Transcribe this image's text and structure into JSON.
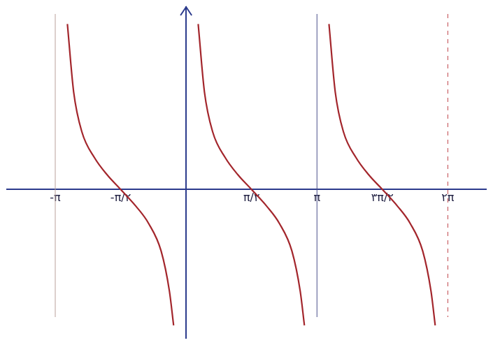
{
  "chart_data": {
    "type": "line",
    "x": [
      -2.85,
      -2.7,
      -2.5,
      -2.2,
      -1.9,
      -1.5708,
      -1.2,
      -0.9,
      -0.6,
      -0.4,
      -0.3,
      0,
      0.29,
      0.44,
      0.64,
      0.94,
      1.24,
      1.5708,
      1.94,
      2.24,
      2.54,
      2.74,
      2.84,
      3.1416,
      3.43,
      3.58,
      3.78,
      4.08,
      4.38,
      4.7124,
      5.08,
      5.38,
      5.68,
      5.88,
      5.98
    ],
    "series": [
      {
        "color": "#a3262c",
        "values": [
          3.9,
          2.3,
          1.35,
          0.75,
          0.35,
          0,
          -0.4,
          -0.8,
          -1.45,
          -2.4,
          -3.2,
          null,
          3.9,
          2.3,
          1.35,
          0.75,
          0.35,
          0,
          -0.4,
          -0.8,
          -1.45,
          -2.4,
          -3.2,
          null,
          3.9,
          2.3,
          1.35,
          0.75,
          0.35,
          0,
          -0.4,
          -0.8,
          -1.45,
          -2.4,
          -3.2
        ]
      }
    ],
    "asymptotes": [
      -3.1416,
      3.1416,
      6.2832
    ],
    "xlim": [
      -4.3,
      7.2
    ],
    "xticks": [
      {
        "value": -3.1416,
        "label": "-π"
      },
      {
        "value": -1.5708,
        "label": "-π/۲"
      },
      {
        "value": 1.5708,
        "label": "π/۲"
      },
      {
        "value": 3.1416,
        "label": "π"
      },
      {
        "value": 4.7124,
        "label": "۳π/۲"
      },
      {
        "value": 6.2832,
        "label": "۲π"
      }
    ],
    "ylim": [
      -3.5,
      4.3
    ],
    "grid": false,
    "tick_labels": "x"
  }
}
